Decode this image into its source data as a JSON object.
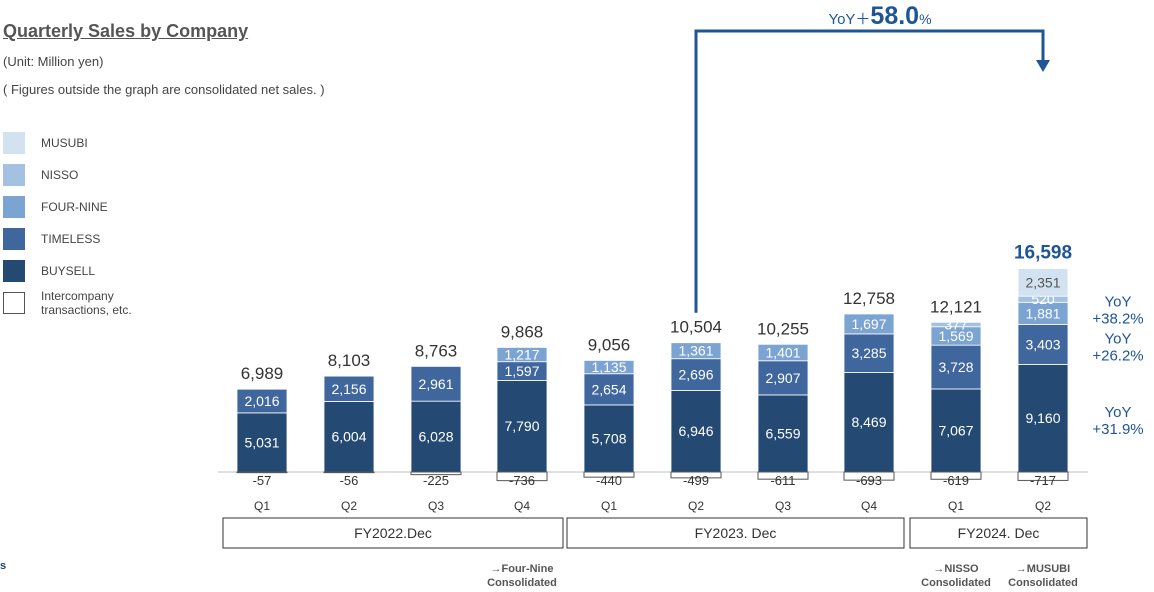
{
  "header": {
    "title": "Quarterly Sales by Company",
    "unit": "(Unit: Million yen)",
    "note": "( Figures outside the graph are consolidated net sales. )"
  },
  "page_mark": "s",
  "colors": {
    "musubi": "#d3e2f1",
    "nisso": "#a5c1e1",
    "four_nine": "#7ca4d3",
    "timeless": "#3f679e",
    "buysell": "#244a74",
    "intercompany": "#ffffff",
    "accent": "#1f5596"
  },
  "chart_data": {
    "type": "bar",
    "stacked": true,
    "categories": [
      "Q1",
      "Q2",
      "Q3",
      "Q4",
      "Q1",
      "Q2",
      "Q3",
      "Q4",
      "Q1",
      "Q2"
    ],
    "groups": [
      {
        "label": "FY2022.Dec",
        "categories": [
          0,
          1,
          2,
          3
        ]
      },
      {
        "label": "FY2023. Dec",
        "categories": [
          4,
          5,
          6,
          7
        ]
      },
      {
        "label": "FY2024. Dec",
        "categories": [
          8,
          9
        ]
      }
    ],
    "series": [
      {
        "name": "BUYSELL",
        "values": [
          5031,
          6004,
          6028,
          7790,
          5708,
          6946,
          6559,
          8469,
          7067,
          9160
        ]
      },
      {
        "name": "TIMELESS",
        "values": [
          2016,
          2156,
          2961,
          1597,
          2654,
          2696,
          2907,
          3285,
          3728,
          3403
        ]
      },
      {
        "name": "FOUR-NINE",
        "values": [
          null,
          null,
          null,
          1217,
          1135,
          1361,
          1401,
          1697,
          1569,
          1881
        ]
      },
      {
        "name": "NISSO",
        "values": [
          null,
          null,
          null,
          null,
          null,
          null,
          null,
          null,
          377,
          520
        ]
      },
      {
        "name": "MUSUBI",
        "values": [
          null,
          null,
          null,
          null,
          null,
          null,
          null,
          null,
          null,
          2351
        ]
      },
      {
        "name": "Intercompany transactions, etc.",
        "values": [
          -57,
          -56,
          -225,
          -736,
          -440,
          -499,
          -611,
          -693,
          -619,
          -717
        ]
      }
    ],
    "totals": [
      "6,989",
      "8,103",
      "8,763",
      "9,868",
      "9,056",
      "10,504",
      "10,255",
      "12,758",
      "12,121",
      "16,598"
    ],
    "legend_labels": [
      "MUSUBI",
      "NISSO",
      "FOUR-NINE",
      "TIMELESS",
      "BUYSELL",
      "Intercompany transactions, etc."
    ],
    "legend_position": "left",
    "yoy_total": {
      "prefix": "YoY＋",
      "value": "58.0",
      "suffix": "%"
    },
    "yoy_series": [
      {
        "series": "FOUR-NINE",
        "line1": "YoY",
        "line2": "+38.2%"
      },
      {
        "series": "TIMELESS",
        "line1": "YoY",
        "line2": "+26.2%"
      },
      {
        "series": "BUYSELL",
        "line1": "YoY",
        "line2": "+31.9%"
      }
    ],
    "footnotes": [
      {
        "category": 3,
        "line1": "→Four-Nine",
        "line2": "Consolidated"
      },
      {
        "category": 8,
        "line1": "→NISSO",
        "line2": "Consolidated"
      },
      {
        "category": 9,
        "line1": "→MUSUBI",
        "line2": "Consolidated"
      }
    ],
    "ylim": [
      -1000,
      20000
    ],
    "grid": false
  }
}
